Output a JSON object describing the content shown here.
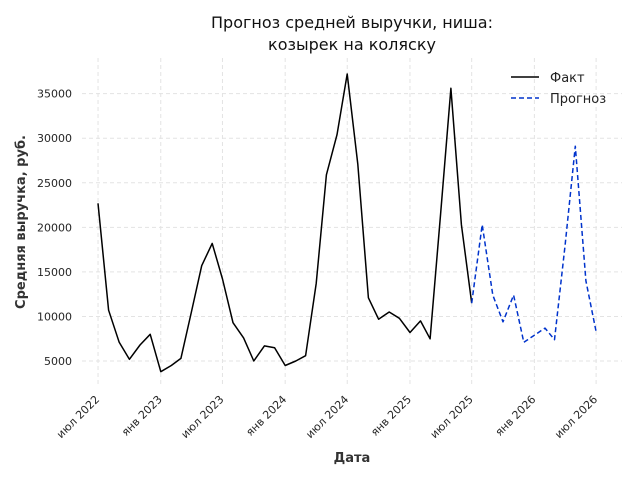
{
  "chart_data": {
    "type": "line",
    "title_line1": "Прогноз средней выручки, ниша:",
    "title_line2": "козырек на коляску",
    "xlabel": "Дата",
    "ylabel": "Средняя выручка, руб.",
    "x_ticks": [
      {
        "date": "2022-07",
        "label": "июл 2022"
      },
      {
        "date": "2023-01",
        "label": "янв 2023"
      },
      {
        "date": "2023-07",
        "label": "июл 2023"
      },
      {
        "date": "2024-01",
        "label": "янв 2024"
      },
      {
        "date": "2024-07",
        "label": "июл 2024"
      },
      {
        "date": "2025-01",
        "label": "янв 2025"
      },
      {
        "date": "2025-07",
        "label": "июл 2025"
      },
      {
        "date": "2026-01",
        "label": "янв 2026"
      },
      {
        "date": "2026-07",
        "label": "июл 2026"
      }
    ],
    "y_ticks": [
      5000,
      10000,
      15000,
      20000,
      25000,
      30000,
      35000
    ],
    "xlim": [
      "2022-05-15",
      "2026-09-15"
    ],
    "ylim": [
      2200,
      39000
    ],
    "grid": true,
    "legend_position": "top-right",
    "series": [
      {
        "name": "Факт",
        "color": "#000000",
        "style": "solid",
        "points": [
          [
            "2022-07",
            22700
          ],
          [
            "2022-08",
            10700
          ],
          [
            "2022-09",
            7100
          ],
          [
            "2022-10",
            5200
          ],
          [
            "2022-11",
            6800
          ],
          [
            "2022-12",
            8000
          ],
          [
            "2023-01",
            3800
          ],
          [
            "2023-02",
            4500
          ],
          [
            "2023-03",
            5300
          ],
          [
            "2023-04",
            10500
          ],
          [
            "2023-05",
            15700
          ],
          [
            "2023-06",
            18200
          ],
          [
            "2023-07",
            14200
          ],
          [
            "2023-08",
            9300
          ],
          [
            "2023-09",
            7600
          ],
          [
            "2023-10",
            5000
          ],
          [
            "2023-11",
            6700
          ],
          [
            "2023-12",
            6500
          ],
          [
            "2024-01",
            4500
          ],
          [
            "2024-02",
            5000
          ],
          [
            "2024-03",
            5600
          ],
          [
            "2024-04",
            13700
          ],
          [
            "2024-05",
            25900
          ],
          [
            "2024-06",
            30400
          ],
          [
            "2024-07",
            37200
          ],
          [
            "2024-08",
            27100
          ],
          [
            "2024-09",
            12100
          ],
          [
            "2024-10",
            9700
          ],
          [
            "2024-11",
            10500
          ],
          [
            "2024-12",
            9800
          ],
          [
            "2025-01",
            8200
          ],
          [
            "2025-02",
            9500
          ],
          [
            "2025-03",
            7500
          ],
          [
            "2025-04",
            21500
          ],
          [
            "2025-05",
            35600
          ],
          [
            "2025-06",
            20300
          ],
          [
            "2025-07",
            11500
          ]
        ]
      },
      {
        "name": "Прогноз",
        "color": "#0033cc",
        "style": "dashed",
        "points": [
          [
            "2025-07",
            11500
          ],
          [
            "2025-08",
            20300
          ],
          [
            "2025-09",
            12400
          ],
          [
            "2025-10",
            9400
          ],
          [
            "2025-11",
            12400
          ],
          [
            "2025-12",
            7100
          ],
          [
            "2026-01",
            7900
          ],
          [
            "2026-02",
            8700
          ],
          [
            "2026-03",
            7400
          ],
          [
            "2026-04",
            18000
          ],
          [
            "2026-05",
            29100
          ],
          [
            "2026-06",
            14000
          ],
          [
            "2026-07",
            8300
          ]
        ]
      }
    ]
  }
}
